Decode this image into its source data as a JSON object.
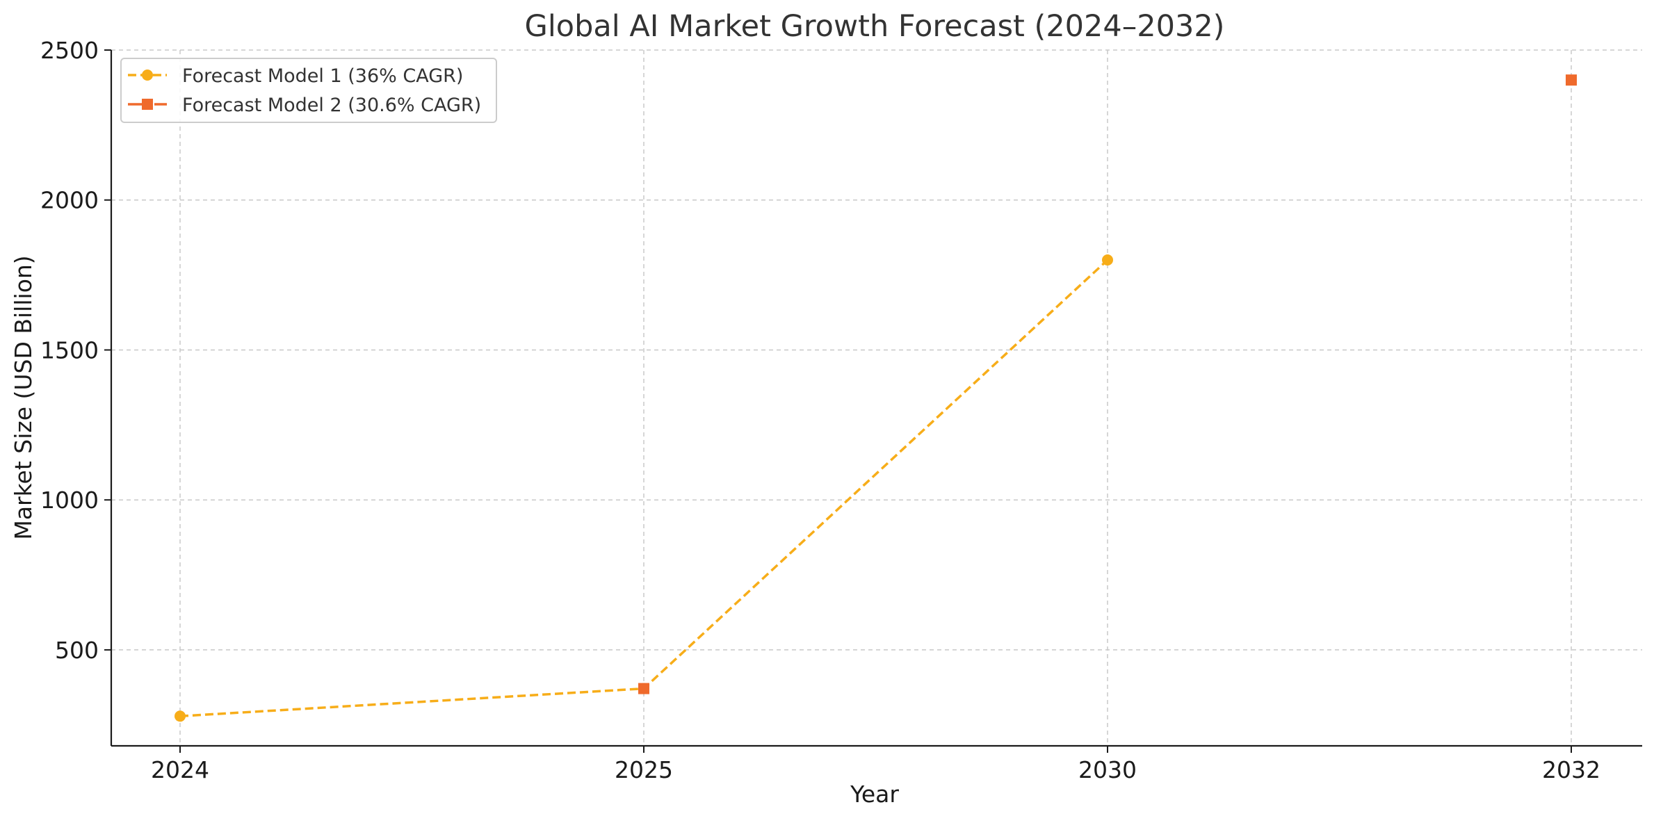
{
  "chart_data": {
    "type": "line",
    "title": "Global AI Market Growth Forecast (2024–2032)",
    "xlabel": "Year",
    "ylabel": "Market Size (USD Billion)",
    "categories": [
      "2024",
      "2025",
      "2030",
      "2032"
    ],
    "yticks": [
      500,
      1000,
      1500,
      2000,
      2500
    ],
    "ylim": [
      180,
      2500
    ],
    "grid": true,
    "legend_position": "top-left",
    "series": [
      {
        "name": "Forecast Model 1 (36% CAGR)",
        "color": "#f7ad19",
        "marker": "circle",
        "line_style": "dashed",
        "points": [
          {
            "x": "2024",
            "y": 279
          },
          {
            "x": "2025",
            "y": 371
          },
          {
            "x": "2030",
            "y": 1800
          }
        ]
      },
      {
        "name": "Forecast Model 2 (30.6% CAGR)",
        "color": "#ef6a2c",
        "marker": "square",
        "line_style": "dashed",
        "points": [
          {
            "x": "2025",
            "y": 371
          },
          {
            "x": "2032",
            "y": 2400
          }
        ]
      }
    ]
  }
}
